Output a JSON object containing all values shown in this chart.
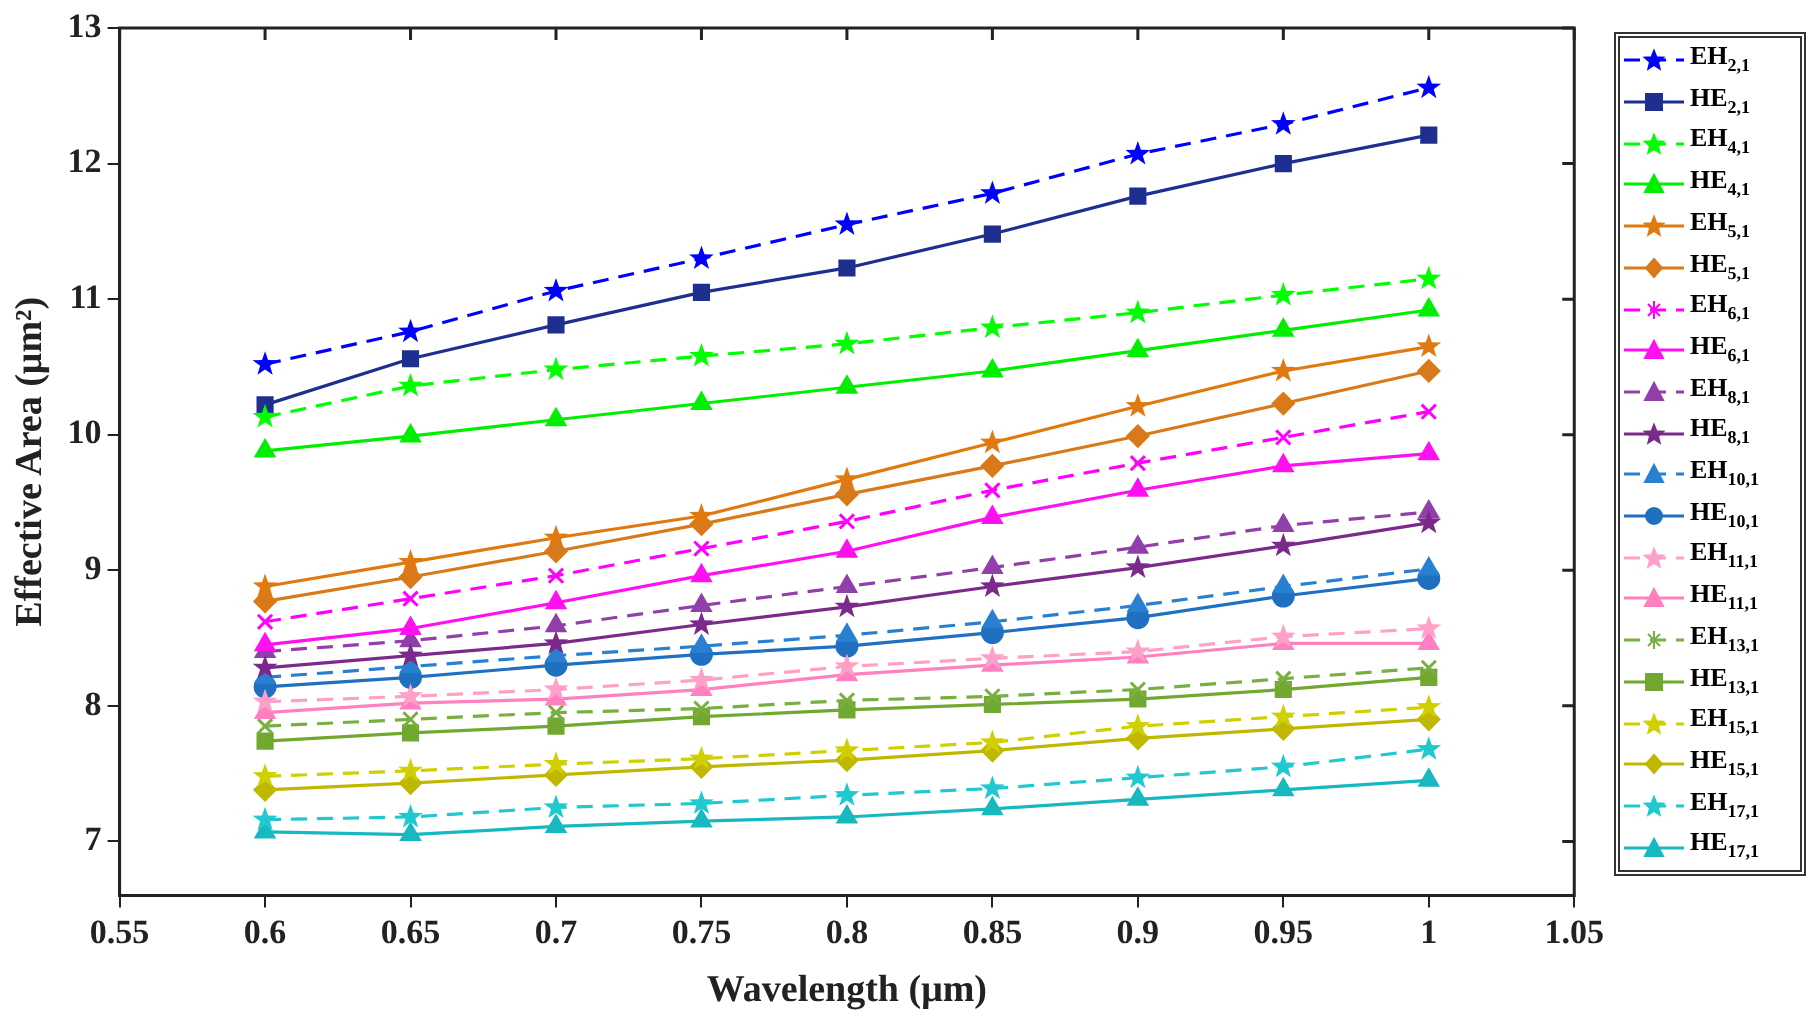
{
  "chart_data": {
    "type": "line",
    "xlabel": "Wavelength (μm)",
    "ylabel": "Effective Area (μm²)",
    "x": [
      0.6,
      0.65,
      0.7,
      0.75,
      0.8,
      0.85,
      0.9,
      0.95,
      1.0
    ],
    "xlim": [
      0.55,
      1.05
    ],
    "xticks": [
      {
        "value": 0.55,
        "label": "0.55"
      },
      {
        "value": 0.6,
        "label": "0.6"
      },
      {
        "value": 0.65,
        "label": "0.65"
      },
      {
        "value": 0.7,
        "label": "0.7"
      },
      {
        "value": 0.75,
        "label": "0.75"
      },
      {
        "value": 0.8,
        "label": "0.8"
      },
      {
        "value": 0.85,
        "label": "0.85"
      },
      {
        "value": 0.9,
        "label": "0.9"
      },
      {
        "value": 0.95,
        "label": "0.95"
      },
      {
        "value": 1.0,
        "label": "1"
      },
      {
        "value": 1.05,
        "label": "1.05"
      }
    ],
    "ylim": [
      6.6,
      13
    ],
    "yticks": [
      7,
      8,
      9,
      10,
      11,
      12,
      13
    ],
    "grid": false,
    "legend": "right",
    "series": [
      {
        "name": "EH$_{2,1}$",
        "color": "#0000ff",
        "marker": "star",
        "line_style": "dashed",
        "values": [
          10.52,
          10.76,
          11.06,
          11.3,
          11.55,
          11.78,
          12.07,
          12.29,
          12.56
        ]
      },
      {
        "name": "HE$_{2,1}$",
        "color": "#1f2f8f",
        "marker": "square",
        "line_style": "solid",
        "values": [
          10.22,
          10.56,
          10.81,
          11.05,
          11.23,
          11.48,
          11.76,
          12.0,
          12.21
        ]
      },
      {
        "name": "EH$_{4,1}$",
        "color": "#00ff00",
        "marker": "star",
        "line_style": "dashed",
        "values": [
          10.13,
          10.36,
          10.48,
          10.58,
          10.67,
          10.79,
          10.9,
          11.03,
          11.15
        ]
      },
      {
        "name": "HE$_{4,1}$",
        "color": "#00ee00",
        "marker": "triangle",
        "line_style": "solid",
        "values": [
          9.88,
          9.99,
          10.11,
          10.23,
          10.35,
          10.47,
          10.62,
          10.77,
          10.92
        ]
      },
      {
        "name": "EH$_{5,1}$",
        "color": "#e07a10",
        "marker": "star",
        "line_style": "solid",
        "values": [
          8.88,
          9.06,
          9.24,
          9.4,
          9.67,
          9.94,
          10.21,
          10.47,
          10.65
        ]
      },
      {
        "name": "HE$_{5,1}$",
        "color": "#d97a1a",
        "marker": "diamond",
        "line_style": "solid",
        "values": [
          8.77,
          8.95,
          9.14,
          9.34,
          9.56,
          9.77,
          9.99,
          10.23,
          10.47
        ]
      },
      {
        "name": "EH$_{6,1}$",
        "color": "#ff00ff",
        "marker": "cross",
        "line_style": "dashed",
        "values": [
          8.62,
          8.79,
          8.96,
          9.16,
          9.36,
          9.59,
          9.79,
          9.98,
          10.17
        ]
      },
      {
        "name": "HE$_{6,1}$",
        "color": "#ff10f0",
        "marker": "triangle",
        "line_style": "solid",
        "values": [
          8.45,
          8.57,
          8.76,
          8.96,
          9.14,
          9.39,
          9.59,
          9.77,
          9.86
        ]
      },
      {
        "name": "EH$_{8,1}$",
        "color": "#9040a8",
        "marker": "triangle",
        "line_style": "dashed",
        "values": [
          8.4,
          8.48,
          8.59,
          8.74,
          8.88,
          9.02,
          9.17,
          9.33,
          9.43
        ]
      },
      {
        "name": "HE$_{8,1}$",
        "color": "#7b2a8c",
        "marker": "star",
        "line_style": "solid",
        "values": [
          8.28,
          8.37,
          8.46,
          8.6,
          8.73,
          8.88,
          9.02,
          9.18,
          9.35
        ]
      },
      {
        "name": "EH$_{10,1}$",
        "color": "#2a80d0",
        "marker": "triangle",
        "line_style": "dashed",
        "values": [
          8.21,
          8.29,
          8.37,
          8.44,
          8.52,
          8.62,
          8.74,
          8.88,
          9.01
        ]
      },
      {
        "name": "HE$_{10,1}$",
        "color": "#1f70c0",
        "marker": "circle",
        "line_style": "solid",
        "values": [
          8.14,
          8.21,
          8.3,
          8.38,
          8.44,
          8.54,
          8.65,
          8.81,
          8.94
        ]
      },
      {
        "name": "EH$_{11,1}$",
        "color": "#ffa0c8",
        "marker": "star",
        "line_style": "dashed",
        "values": [
          8.03,
          8.07,
          8.12,
          8.19,
          8.29,
          8.35,
          8.4,
          8.51,
          8.57
        ]
      },
      {
        "name": "HE$_{11,1}$",
        "color": "#ff80c0",
        "marker": "triangle",
        "line_style": "solid",
        "values": [
          7.95,
          8.02,
          8.05,
          8.12,
          8.23,
          8.3,
          8.36,
          8.46,
          8.46
        ]
      },
      {
        "name": "EH$_{13,1}$",
        "color": "#78b040",
        "marker": "cross",
        "line_style": "dashed",
        "values": [
          7.85,
          7.9,
          7.95,
          7.98,
          8.04,
          8.07,
          8.12,
          8.2,
          8.28
        ]
      },
      {
        "name": "HE$_{13,1}$",
        "color": "#70a830",
        "marker": "square",
        "line_style": "solid",
        "values": [
          7.74,
          7.8,
          7.85,
          7.92,
          7.97,
          8.01,
          8.05,
          8.12,
          8.21
        ]
      },
      {
        "name": "EH$_{15,1}$",
        "color": "#d0d000",
        "marker": "star",
        "line_style": "dashed",
        "values": [
          7.48,
          7.52,
          7.57,
          7.61,
          7.67,
          7.73,
          7.85,
          7.92,
          7.99
        ]
      },
      {
        "name": "HE$_{15,1}$",
        "color": "#c0b800",
        "marker": "diamond",
        "line_style": "solid",
        "values": [
          7.38,
          7.43,
          7.49,
          7.55,
          7.6,
          7.67,
          7.76,
          7.83,
          7.9
        ]
      },
      {
        "name": "EH$_{17,1}$",
        "color": "#20c8d0",
        "marker": "star",
        "line_style": "dashed",
        "values": [
          7.16,
          7.18,
          7.25,
          7.28,
          7.34,
          7.39,
          7.47,
          7.55,
          7.68
        ]
      },
      {
        "name": "HE$_{17,1}$",
        "color": "#18b8c0",
        "marker": "triangle",
        "line_style": "solid",
        "values": [
          7.07,
          7.05,
          7.11,
          7.15,
          7.18,
          7.24,
          7.31,
          7.38,
          7.45
        ]
      }
    ]
  }
}
